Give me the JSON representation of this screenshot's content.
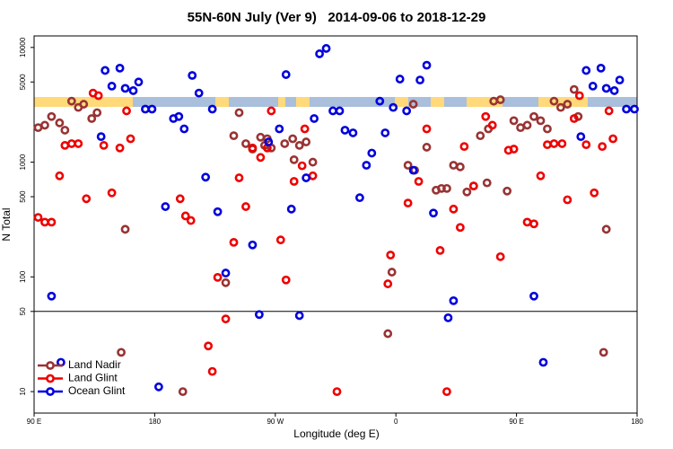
{
  "chart_data": {
    "type": "scatter",
    "title": "55N-60N July (Ver 9)   2014-09-06 to 2018-12-29",
    "xlabel": "Longitude (deg E)",
    "ylabel": "N Total",
    "xlim": [
      90,
      540
    ],
    "xticks": [
      {
        "value": 90,
        "label": "90 E"
      },
      {
        "value": 180,
        "label": "180"
      },
      {
        "value": 270,
        "label": "90 W"
      },
      {
        "value": 360,
        "label": "0"
      },
      {
        "value": 450,
        "label": "90 E"
      },
      {
        "value": 540,
        "label": "180"
      }
    ],
    "ylim": [
      6.5,
      12600
    ],
    "ylog": true,
    "yticks": [
      10,
      50,
      100,
      500,
      1000,
      5000,
      10000
    ],
    "hline": 50,
    "legend": "lower left",
    "series": [
      {
        "name": "Land Nadir",
        "color": "#993333",
        "x": [
          93,
          98,
          103,
          109,
          113,
          118,
          123,
          127,
          133,
          137,
          158,
          155,
          201,
          239,
          243,
          248,
          253,
          259,
          262,
          264,
          267,
          277,
          283,
          284,
          288,
          293,
          298,
          233,
          354,
          357,
          369,
          374,
          373,
          383,
          390,
          394,
          398,
          403,
          408,
          413,
          418,
          423,
          429,
          428,
          433,
          438,
          443,
          448,
          453,
          458,
          463,
          468,
          473,
          478,
          483,
          488,
          493,
          496,
          517,
          515
        ],
        "values": [
          2000,
          2100,
          2500,
          2200,
          1900,
          3400,
          3000,
          3200,
          2400,
          2700,
          260,
          22,
          10,
          1700,
          2700,
          1450,
          1300,
          1650,
          1400,
          1600,
          1330,
          1450,
          1600,
          1050,
          1400,
          1500,
          1000,
          89,
          32,
          110,
          940,
          850,
          3200,
          1350,
          570,
          590,
          590,
          940,
          910,
          550,
          620,
          1700,
          1950,
          660,
          3400,
          3500,
          560,
          2300,
          2000,
          2100,
          2500,
          2300,
          1950,
          3400,
          3000,
          3200,
          4300,
          2500,
          260,
          22
        ]
      },
      {
        "name": "Land Glint",
        "color": "#ee0000",
        "x": [
          93,
          98,
          103,
          109,
          113,
          118,
          123,
          129,
          134,
          138,
          142,
          148,
          154,
          159,
          162,
          199,
          203,
          207,
          220,
          223,
          227,
          233,
          239,
          243,
          248,
          253,
          259,
          264,
          267,
          274,
          278,
          284,
          290,
          292,
          298,
          316,
          354,
          356,
          369,
          377,
          383,
          393,
          398,
          403,
          408,
          411,
          418,
          427,
          432,
          438,
          444,
          448,
          458,
          463,
          468,
          473,
          478,
          484,
          488,
          493,
          497,
          502,
          508,
          514,
          519,
          522
        ],
        "values": [
          330,
          300,
          300,
          760,
          1400,
          1450,
          1450,
          480,
          4000,
          3800,
          1400,
          540,
          1330,
          2800,
          1600,
          480,
          340,
          310,
          25,
          15,
          99,
          43,
          200,
          730,
          410,
          1330,
          1100,
          1330,
          2800,
          210,
          94,
          680,
          930,
          1950,
          760,
          10,
          87,
          155,
          440,
          680,
          1950,
          170,
          10,
          390,
          270,
          1370,
          620,
          2500,
          2100,
          150,
          1270,
          1300,
          300,
          290,
          760,
          1420,
          1450,
          1450,
          470,
          2400,
          3800,
          1420,
          540,
          1370,
          2800,
          1600
        ]
      },
      {
        "name": "Ocean Glint",
        "color": "#0000dd",
        "x": [
          103,
          110,
          140,
          143,
          148,
          154,
          158,
          164,
          168,
          173,
          178,
          183,
          188,
          194,
          198,
          202,
          208,
          213,
          218,
          223,
          227,
          233,
          253,
          258,
          265,
          273,
          278,
          282,
          288,
          293,
          299,
          303,
          308,
          313,
          318,
          322,
          328,
          333,
          338,
          342,
          348,
          352,
          358,
          363,
          368,
          373,
          378,
          383,
          388,
          399,
          403,
          463,
          470,
          498,
          502,
          507,
          513,
          517,
          523,
          527,
          532,
          538
        ],
        "values": [
          68,
          18,
          1670,
          6300,
          4600,
          6600,
          4400,
          4200,
          5000,
          2900,
          2900,
          11,
          410,
          2400,
          2500,
          1950,
          5700,
          4000,
          740,
          2900,
          370,
          108,
          190,
          47,
          1500,
          1950,
          5800,
          390,
          46,
          730,
          2400,
          8800,
          9800,
          2800,
          2800,
          1900,
          1800,
          490,
          940,
          1200,
          3400,
          1800,
          3000,
          5300,
          2800,
          850,
          5200,
          7000,
          360,
          44,
          62,
          68,
          18,
          1670,
          6300,
          4600,
          6600,
          4400,
          4200,
          5200,
          2900,
          2900
        ]
      }
    ]
  }
}
